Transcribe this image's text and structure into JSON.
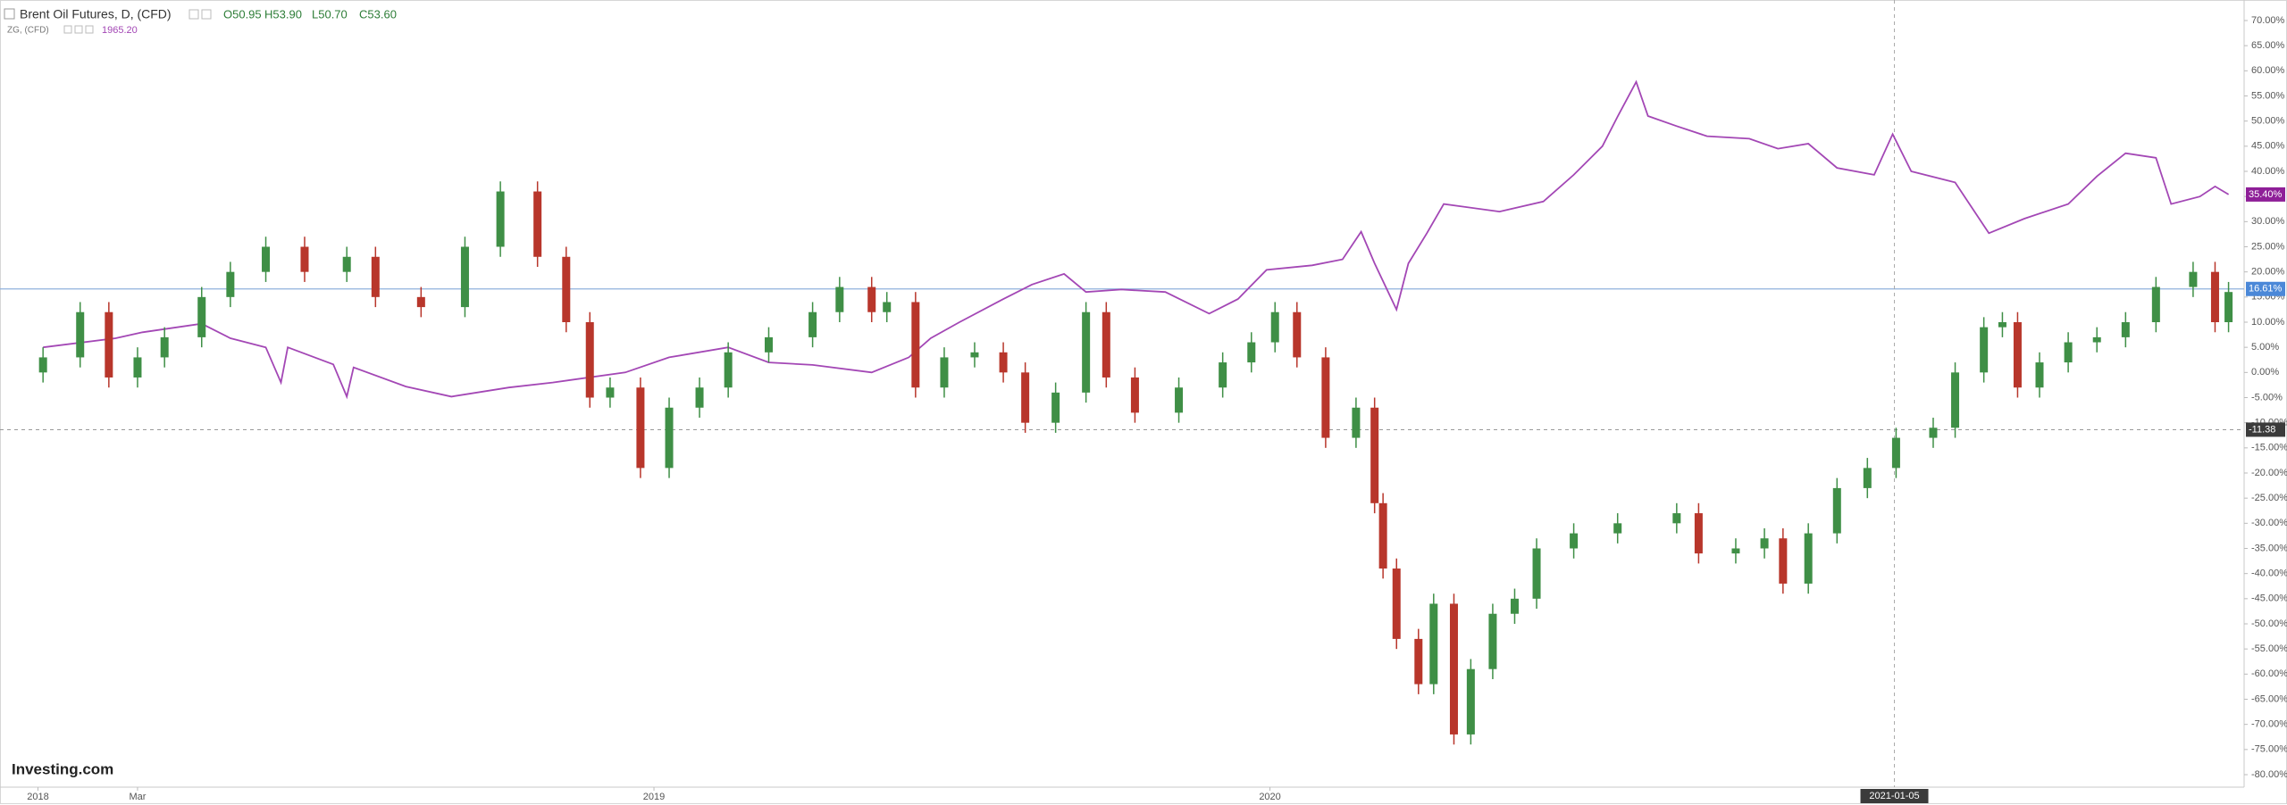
{
  "chart_data": {
    "type": "candlestick",
    "title": "Brent Oil Futures, D, (CFD)",
    "ohlc_labels": [
      "O50.95",
      "H53.90",
      "L50.70",
      "C53.60"
    ],
    "logo": "Investing.com",
    "up_color": "#3f8f46",
    "down_color": "#b8362b",
    "x": [
      "2018-01-04",
      "2018-01-26",
      "2018-02-12",
      "2018-03-01",
      "2018-03-17",
      "2018-04-08",
      "2018-04-25",
      "2018-05-16",
      "2018-06-08",
      "2018-07-03",
      "2018-07-20",
      "2018-08-16",
      "2018-09-11",
      "2018-10-02",
      "2018-10-24",
      "2018-11-10",
      "2018-11-24",
      "2018-12-06",
      "2018-12-24",
      "2019-01-10",
      "2019-01-28",
      "2019-02-14",
      "2019-03-10",
      "2019-04-05",
      "2019-04-21",
      "2019-05-10",
      "2019-05-19",
      "2019-06-05",
      "2019-06-22",
      "2019-07-10",
      "2019-07-27",
      "2019-08-09",
      "2019-08-27",
      "2019-09-14",
      "2019-09-26",
      "2019-10-13",
      "2019-11-08",
      "2019-12-04",
      "2019-12-21",
      "2020-01-04",
      "2020-01-17",
      "2020-02-03",
      "2020-02-21",
      "2020-03-03",
      "2020-03-08",
      "2020-03-16",
      "2020-03-29",
      "2020-04-07",
      "2020-04-19",
      "2020-04-29",
      "2020-05-12",
      "2020-05-25",
      "2020-06-07",
      "2020-06-29",
      "2020-07-25",
      "2020-08-29",
      "2020-09-11",
      "2020-10-03",
      "2020-10-20",
      "2020-10-31",
      "2020-11-15",
      "2020-12-02",
      "2020-12-20",
      "2021-01-06",
      "2021-01-28",
      "2021-02-10",
      "2021-02-27",
      "2021-03-10",
      "2021-03-19",
      "2021-04-01",
      "2021-04-18",
      "2021-05-05",
      "2021-05-22",
      "2021-06-09",
      "2021-07-01",
      "2021-07-14",
      "2021-07-22"
    ],
    "open": [
      0,
      3,
      12,
      -1,
      3,
      7,
      15,
      20,
      25,
      20,
      23,
      15,
      13,
      25,
      36,
      23,
      10,
      -5,
      -3,
      -19,
      -7,
      -3,
      4,
      7,
      12,
      17,
      12,
      14,
      -3,
      3,
      4,
      0,
      -10,
      -4,
      12,
      -1,
      -8,
      -3,
      2,
      6,
      12,
      3,
      -13,
      -7,
      -26,
      -39,
      -53,
      -62,
      -46,
      -72,
      -59,
      -48,
      -45,
      -35,
      -32,
      -30,
      -28,
      -36,
      -35,
      -33,
      -42,
      -32,
      -23,
      -19,
      -13,
      -11,
      0,
      9,
      10,
      -3,
      2,
      6,
      7,
      10,
      17,
      20,
      10
    ],
    "high": [
      5,
      14,
      14,
      5,
      9,
      17,
      22,
      27,
      27,
      25,
      25,
      17,
      27,
      38,
      38,
      25,
      12,
      -1,
      -1,
      -5,
      -1,
      6,
      9,
      14,
      19,
      19,
      16,
      16,
      5,
      6,
      6,
      2,
      -2,
      14,
      14,
      1,
      -1,
      4,
      8,
      14,
      14,
      5,
      -5,
      -5,
      -24,
      -37,
      -51,
      -44,
      -44,
      -57,
      -46,
      -43,
      -33,
      -30,
      -28,
      -26,
      -26,
      -33,
      -31,
      -31,
      -30,
      -21,
      -17,
      -11,
      -9,
      2,
      11,
      12,
      12,
      4,
      8,
      9,
      12,
      19,
      22,
      22,
      18
    ],
    "low": [
      -2,
      1,
      -3,
      -3,
      1,
      5,
      13,
      18,
      18,
      18,
      13,
      11,
      11,
      23,
      21,
      8,
      -7,
      -7,
      -21,
      -21,
      -9,
      -5,
      2,
      5,
      10,
      10,
      10,
      -5,
      -5,
      1,
      -2,
      -12,
      -12,
      -6,
      -3,
      -10,
      -10,
      -5,
      0,
      4,
      1,
      -15,
      -15,
      -28,
      -41,
      -55,
      -64,
      -64,
      -74,
      -74,
      -61,
      -50,
      -47,
      -37,
      -34,
      -32,
      -38,
      -38,
      -37,
      -44,
      -44,
      -34,
      -25,
      -21,
      -15,
      -13,
      -2,
      7,
      -5,
      -5,
      0,
      4,
      5,
      8,
      15,
      8,
      8
    ],
    "close": [
      3,
      12,
      -1,
      3,
      7,
      15,
      20,
      25,
      20,
      23,
      15,
      13,
      25,
      36,
      23,
      10,
      -5,
      -3,
      -19,
      -7,
      -3,
      4,
      7,
      12,
      17,
      12,
      14,
      -3,
      3,
      4,
      0,
      -10,
      -4,
      12,
      -1,
      -8,
      -3,
      2,
      6,
      12,
      3,
      -13,
      -7,
      -26,
      -39,
      -53,
      -62,
      -46,
      -72,
      -59,
      -48,
      -45,
      -35,
      -32,
      -30,
      -28,
      -36,
      -35,
      -33,
      -42,
      -32,
      -23,
      -19,
      -13,
      -11,
      0,
      9,
      10,
      -3,
      2,
      6,
      7,
      10,
      17,
      20,
      10,
      16
    ],
    "overlay": {
      "type": "line",
      "name": "ZG, (CFD)",
      "value_text": "1965.20",
      "color": "#a347b5",
      "x": [
        "2018-01-04",
        "2018-02-16",
        "2018-03-04",
        "2018-04-08",
        "2018-04-25",
        "2018-05-16",
        "2018-05-25",
        "2018-05-29",
        "2018-06-25",
        "2018-07-03",
        "2018-07-07",
        "2018-08-07",
        "2018-09-03",
        "2018-10-07",
        "2018-11-02",
        "2018-12-15",
        "2019-01-10",
        "2019-02-14",
        "2019-03-10",
        "2019-04-05",
        "2019-05-10",
        "2019-06-01",
        "2019-06-14",
        "2019-07-01",
        "2019-07-27",
        "2019-08-13",
        "2019-09-01",
        "2019-09-14",
        "2019-10-05",
        "2019-10-31",
        "2019-11-26",
        "2019-12-13",
        "2019-12-30",
        "2020-01-26",
        "2020-02-13",
        "2020-02-24",
        "2020-03-03",
        "2020-03-16",
        "2020-03-23",
        "2020-04-03",
        "2020-04-13",
        "2020-05-16",
        "2020-06-11",
        "2020-06-29",
        "2020-07-16",
        "2020-07-25",
        "2020-08-05",
        "2020-08-12",
        "2020-08-29",
        "2020-09-16",
        "2020-10-11",
        "2020-10-28",
        "2020-11-15",
        "2020-12-02",
        "2020-12-24",
        "2021-01-04",
        "2021-01-15",
        "2021-02-10",
        "2021-03-02",
        "2021-03-23",
        "2021-04-18",
        "2021-05-05",
        "2021-05-22",
        "2021-06-09",
        "2021-06-18",
        "2021-07-05",
        "2021-07-14",
        "2021-07-22"
      ],
      "values": [
        5,
        6.8,
        8,
        9.7,
        6.8,
        5,
        -2,
        5,
        1.6,
        -4.8,
        1,
        -2.8,
        -4.8,
        -3,
        -2,
        0,
        3,
        5,
        2,
        1.5,
        0,
        3,
        6.8,
        10,
        14.6,
        17.5,
        19.6,
        16,
        16.5,
        16,
        11.7,
        14.6,
        20.4,
        21.3,
        22.5,
        28,
        21.7,
        12.5,
        21.7,
        27.7,
        33.5,
        32,
        34,
        39.3,
        45,
        50.9,
        57.8,
        51,
        49,
        47,
        46.5,
        44.5,
        45.5,
        40.7,
        39.3,
        47.4,
        40,
        37.8,
        27.7,
        30.6,
        33.5,
        39,
        43.6,
        42.7,
        33.5,
        35,
        37,
        35.4
      ],
      "last_value_label": "35.40%"
    },
    "price_line": {
      "value": 16.61,
      "label": "16.61%",
      "color": "#8fb0dc"
    },
    "crosshair": {
      "x": "2021-01-05",
      "y": -11.38
    },
    "ylim": [
      -80,
      70
    ],
    "yticks": [
      {
        "value": 70,
        "label": "70.00%"
      },
      {
        "value": 65,
        "label": "65.00%"
      },
      {
        "value": 60,
        "label": "60.00%"
      },
      {
        "value": 55,
        "label": "55.00%"
      },
      {
        "value": 50,
        "label": "50.00%"
      },
      {
        "value": 45,
        "label": "45.00%"
      },
      {
        "value": 40,
        "label": "40.00%"
      },
      {
        "value": 35,
        "label": "35.00%"
      },
      {
        "value": 30,
        "label": "30.00%"
      },
      {
        "value": 25,
        "label": "25.00%"
      },
      {
        "value": 20,
        "label": "20.00%"
      },
      {
        "value": 15,
        "label": "15.00%"
      },
      {
        "value": 10,
        "label": "10.00%"
      },
      {
        "value": 5,
        "label": "5.00%"
      },
      {
        "value": 0,
        "label": "0.00%"
      },
      {
        "value": -5,
        "label": "-5.00%"
      },
      {
        "value": -10,
        "label": "-10.00%"
      },
      {
        "value": -15,
        "label": "-15.00%"
      },
      {
        "value": -20,
        "label": "-20.00%"
      },
      {
        "value": -25,
        "label": "-25.00%"
      },
      {
        "value": -30,
        "label": "-30.00%"
      },
      {
        "value": -35,
        "label": "-35.00%"
      },
      {
        "value": -40,
        "label": "-40.00%"
      },
      {
        "value": -45,
        "label": "-45.00%"
      },
      {
        "value": -50,
        "label": "-50.00%"
      },
      {
        "value": -55,
        "label": "-55.00%"
      },
      {
        "value": -60,
        "label": "-60.00%"
      },
      {
        "value": -65,
        "label": "-65.00%"
      },
      {
        "value": -70,
        "label": "-70.00%"
      },
      {
        "value": -75,
        "label": "-75.00%"
      },
      {
        "value": -80,
        "label": "-80.00%"
      }
    ],
    "xticks": [
      {
        "value": "2018-01-01",
        "label": "2018"
      },
      {
        "value": "2018-03-01",
        "label": "Mar"
      },
      {
        "value": "2019-01-01",
        "label": "2019"
      },
      {
        "value": "2020-01-01",
        "label": "2020"
      }
    ]
  }
}
